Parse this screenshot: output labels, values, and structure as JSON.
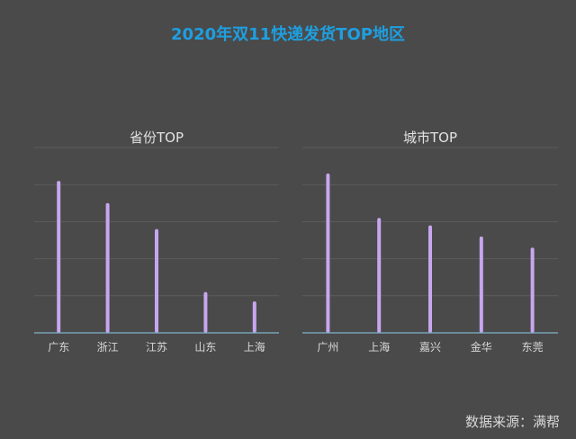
{
  "header": {
    "title": "2020年双11快递发货TOP地区"
  },
  "footer": {
    "source": "数据来源：满帮"
  },
  "colors": {
    "background": "#4a4a4a",
    "title": "#1e9fe0",
    "bar": "#c7a6ef",
    "axis": "#7fb3c9",
    "grid": "#5c5c5c"
  },
  "chart_data": [
    {
      "type": "bar",
      "title": "省份TOP",
      "categories": [
        "广东",
        "浙江",
        "江苏",
        "山东",
        "上海"
      ],
      "values": [
        82,
        70,
        56,
        22,
        17
      ],
      "ylim": [
        0,
        100
      ],
      "grid": true,
      "y_axis_labels": false
    },
    {
      "type": "bar",
      "title": "城市TOP",
      "categories": [
        "广州",
        "上海",
        "嘉兴",
        "金华",
        "东莞"
      ],
      "values": [
        86,
        62,
        58,
        52,
        46
      ],
      "ylim": [
        0,
        100
      ],
      "grid": true,
      "y_axis_labels": false
    }
  ]
}
